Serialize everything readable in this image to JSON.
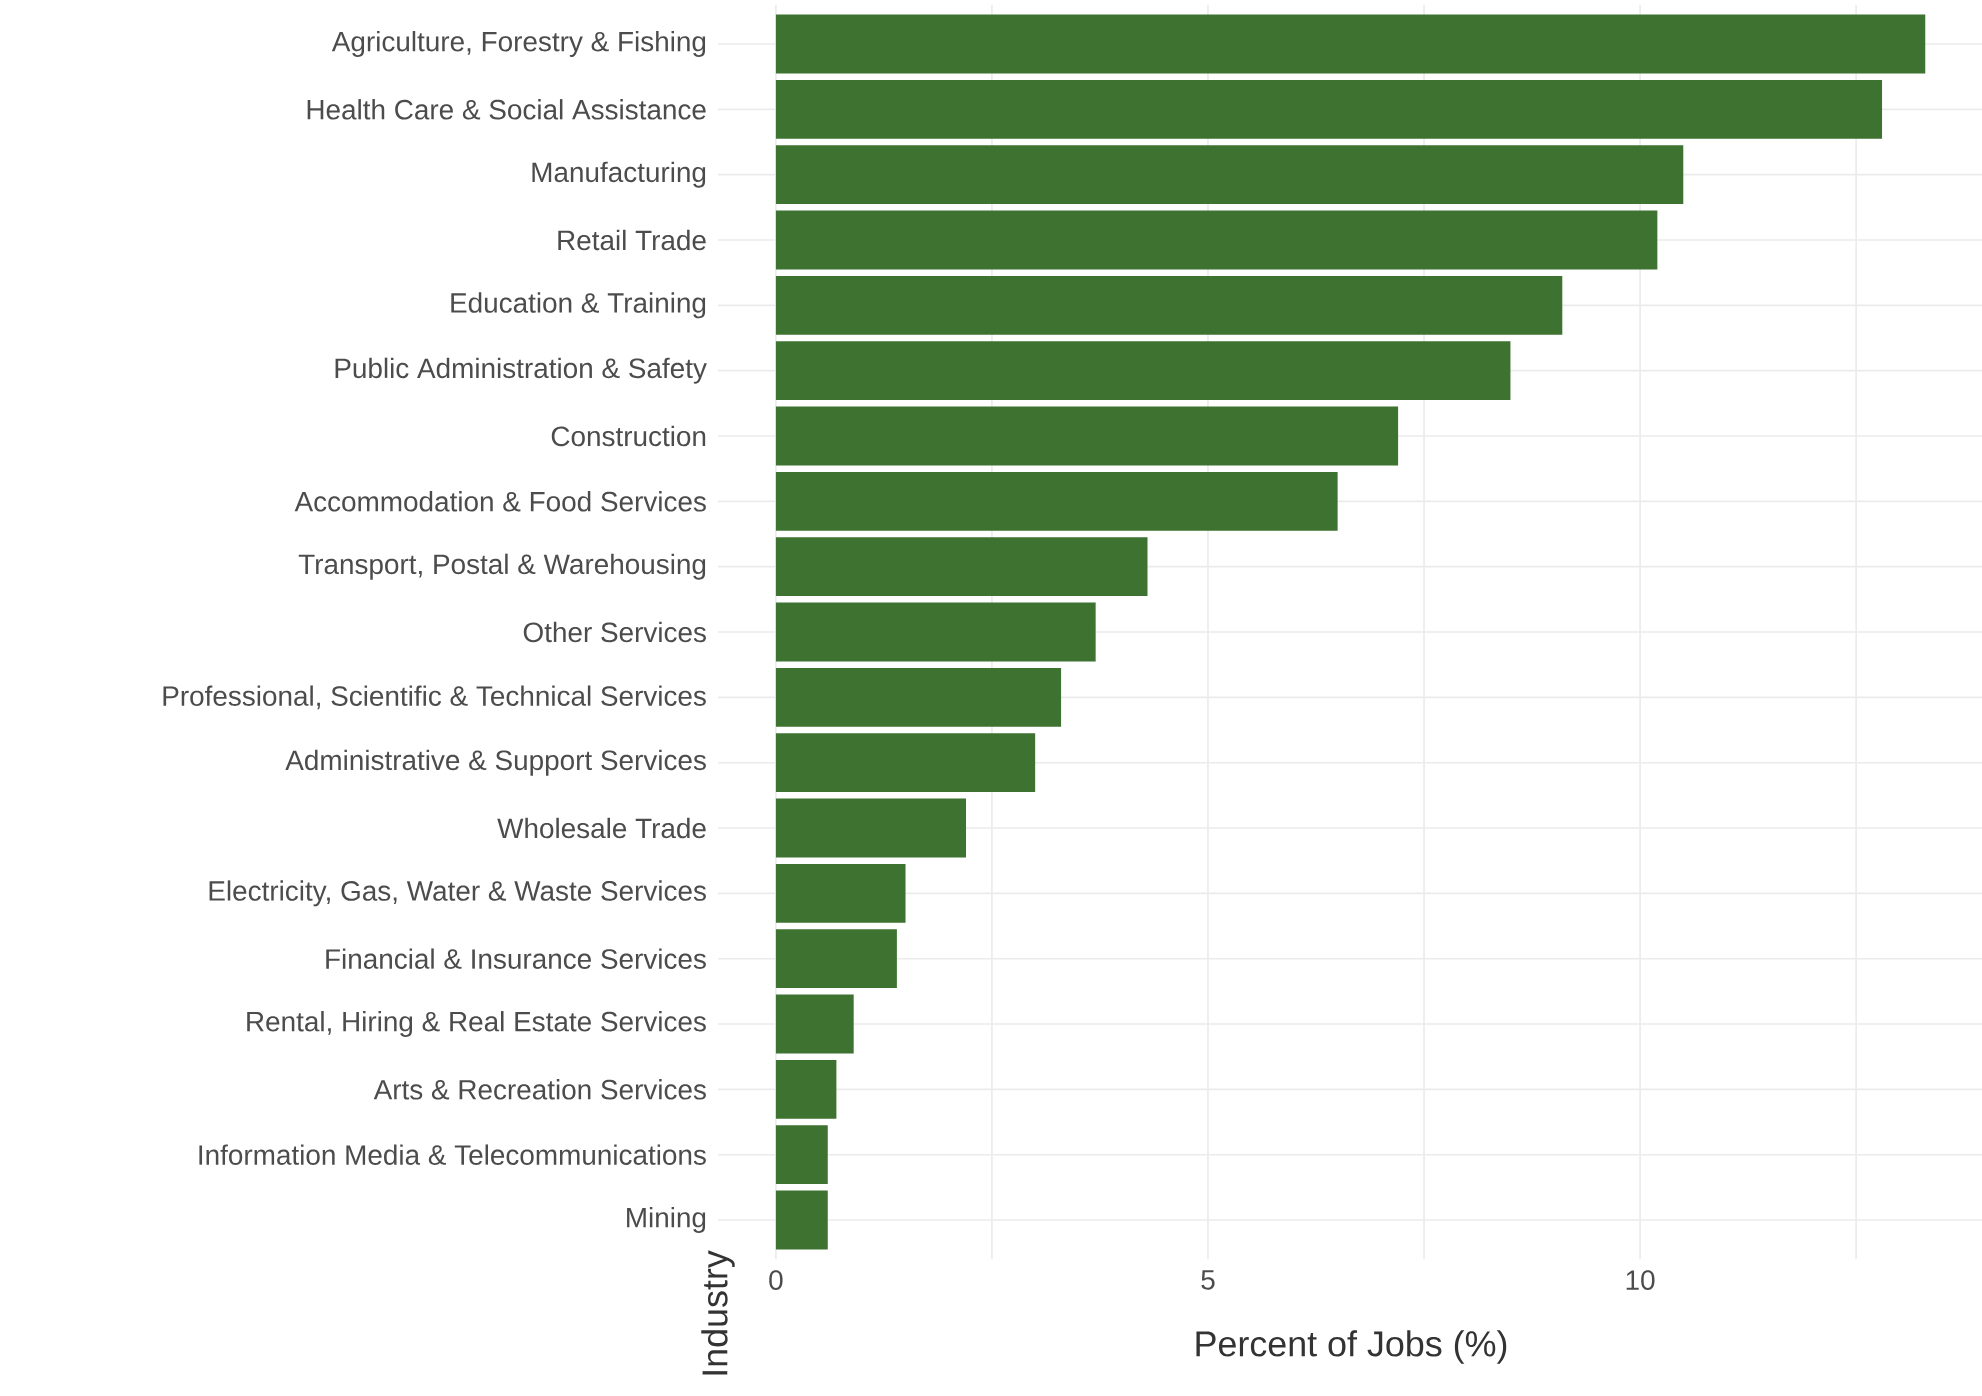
{
  "chart_data": {
    "type": "bar",
    "orientation": "horizontal",
    "xlabel": "Percent of Jobs (%)",
    "ylabel": "Industry",
    "categories": [
      "Agriculture, Forestry & Fishing",
      "Health Care & Social Assistance",
      "Manufacturing",
      "Retail Trade",
      "Education & Training",
      "Public Administration & Safety",
      "Construction",
      "Accommodation & Food Services",
      "Transport, Postal & Warehousing",
      "Other Services",
      "Professional, Scientific & Technical Services",
      "Administrative & Support Services",
      "Wholesale Trade",
      "Electricity, Gas, Water & Waste Services",
      "Financial & Insurance Services",
      "Rental, Hiring & Real Estate Services",
      "Arts & Recreation Services",
      "Information Media & Telecommunications",
      "Mining"
    ],
    "values": [
      13.3,
      12.8,
      10.5,
      10.2,
      9.1,
      8.5,
      7.2,
      6.5,
      4.3,
      3.7,
      3.3,
      3.0,
      2.2,
      1.5,
      1.4,
      0.9,
      0.7,
      0.6,
      0.6
    ],
    "color": "#3d7230",
    "xlim": [
      -0.67,
      13.98
    ],
    "xticks": [
      0,
      {
        "value": 2.5,
        "label": null
      },
      5,
      {
        "value": 7.5,
        "label": null
      },
      10,
      {
        "value": 12.5,
        "label": null
      }
    ],
    "grid": true
  }
}
